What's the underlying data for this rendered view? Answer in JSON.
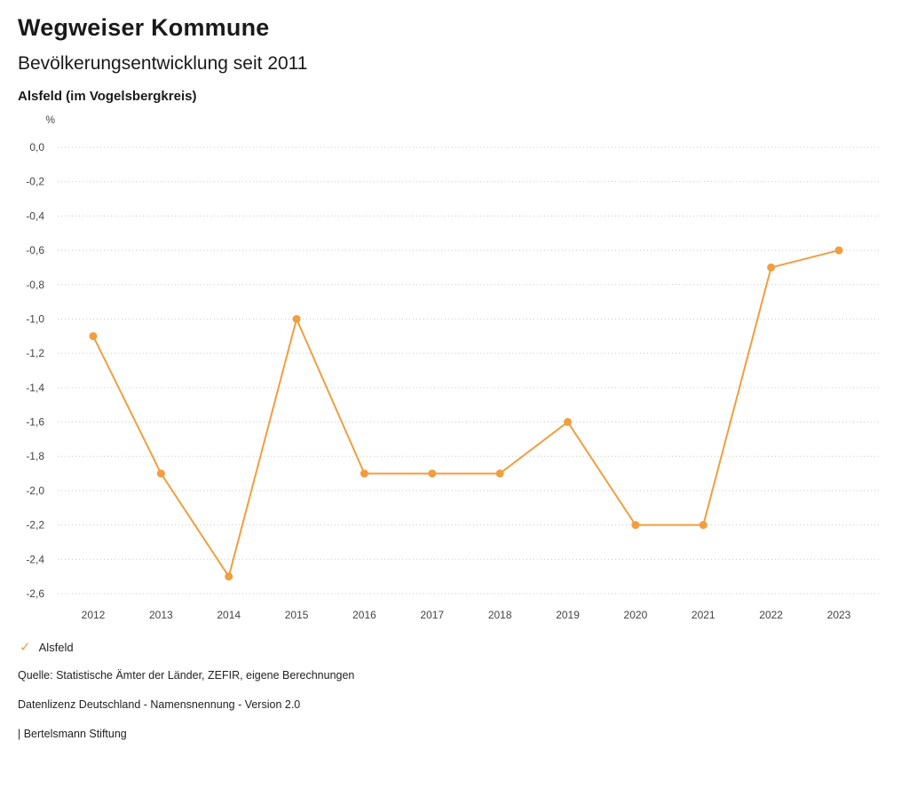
{
  "header": {
    "title": "Wegweiser Kommune",
    "subtitle": "Bevölkerungsentwicklung seit 2011",
    "region": "Alsfeld (im Vogelsbergkreis)"
  },
  "chart_data": {
    "type": "line",
    "title": "Bevölkerungsentwicklung seit 2011",
    "unit_label": "%",
    "xlabel": "",
    "ylabel": "%",
    "categories": [
      "2012",
      "2013",
      "2014",
      "2015",
      "2016",
      "2017",
      "2018",
      "2019",
      "2020",
      "2021",
      "2022",
      "2023"
    ],
    "series": [
      {
        "name": "Alsfeld",
        "values": [
          -1.1,
          -1.9,
          -2.5,
          -1.0,
          -1.9,
          -1.9,
          -1.9,
          -1.6,
          -2.2,
          -2.2,
          -0.7,
          -0.6
        ]
      }
    ],
    "ylim": [
      0,
      -2.6
    ],
    "ytick_labels": [
      "0,0",
      "-0,2",
      "-0,4",
      "-0,6",
      "-0,8",
      "-1,0",
      "-1,2",
      "-1,4",
      "-1,6",
      "-1,8",
      "-2,0",
      "-2,2",
      "-2,4",
      "-2,6"
    ],
    "grid": "dotted-horizontal",
    "legend_position": "bottom-left",
    "line_color": "#F19E40",
    "marker_color": "#F19E40",
    "gridline_color": "#c8c8c8",
    "tick_text_color": "#444444"
  },
  "legend": {
    "items": [
      {
        "label": "Alsfeld",
        "check_icon": "✓"
      }
    ]
  },
  "footer": {
    "source": "Quelle: Statistische Ämter der Länder, ZEFIR, eigene Berechnungen",
    "license": "Datenlizenz Deutschland - Namensnennung - Version 2.0",
    "attribution": "| Bertelsmann Stiftung"
  }
}
